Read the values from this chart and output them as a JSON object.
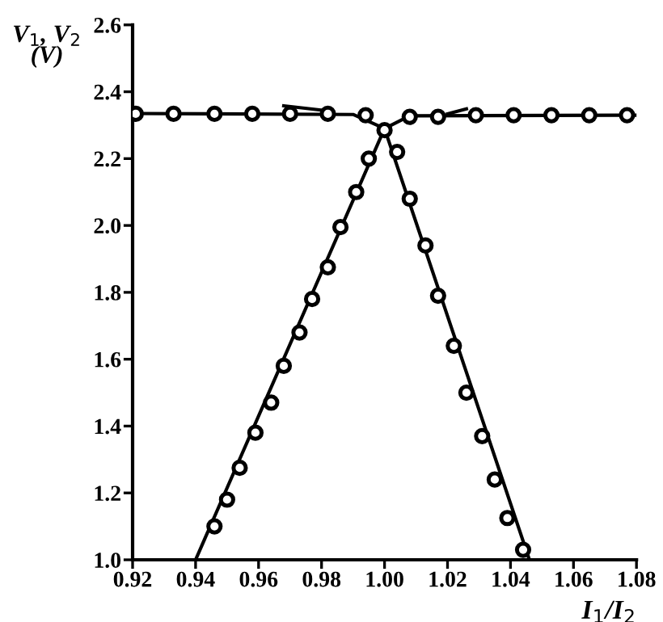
{
  "chart_data": {
    "type": "scatter",
    "xlabel": "I$_{1}$/I$_{2}$",
    "ylabel": "V$_{1}$, V$_{2}$\n(V)",
    "xlim": [
      0.92,
      1.08
    ],
    "xticks": [
      {
        "value": 0.92,
        "label": "0.92"
      },
      {
        "value": 0.94,
        "label": "0.94"
      },
      {
        "value": 0.96,
        "label": "0.96"
      },
      {
        "value": 0.98,
        "label": "0.98"
      },
      {
        "value": 1.0,
        "label": "1.00"
      },
      {
        "value": 1.02,
        "label": "1.02"
      },
      {
        "value": 1.04,
        "label": "1.04"
      },
      {
        "value": 1.06,
        "label": "1.06"
      },
      {
        "value": 1.08,
        "label": "1.08"
      }
    ],
    "ylim": [
      1.0,
      2.6
    ],
    "yticks": [
      {
        "value": 1.0,
        "label": "1.0"
      },
      1.2,
      1.4,
      1.6,
      1.8,
      {
        "value": 2.0,
        "label": "2.0"
      },
      2.2,
      2.4,
      2.6
    ],
    "grid": false,
    "legend": false,
    "marker": "circle",
    "series": [
      {
        "type": "line",
        "marker": "none",
        "color": "#000000",
        "x": [
          0.92,
          0.99,
          1.0,
          1.008,
          1.08
        ],
        "values": [
          2.335,
          2.332,
          2.29,
          2.328,
          2.33
        ]
      },
      {
        "type": "line",
        "marker": "none",
        "color": "#000000",
        "x": [
          0.94,
          1.0,
          1.046
        ],
        "values": [
          1.0,
          2.29,
          1.0
        ]
      },
      {
        "type": "line",
        "marker": "none",
        "color": "#000000",
        "x": [
          0.968,
          0.981
        ],
        "values": [
          2.358,
          2.344
        ]
      },
      {
        "type": "line",
        "marker": "none",
        "color": "#000000",
        "x": [
          1.02,
          1.026
        ],
        "values": [
          2.334,
          2.349
        ]
      },
      {
        "color": "#000000",
        "x": [
          0.921,
          0.933,
          0.946,
          0.958,
          0.97,
          0.982,
          0.994,
          1.008,
          1.017,
          1.029,
          1.041,
          1.053,
          1.065,
          1.077
        ],
        "values": [
          2.334,
          2.334,
          2.334,
          2.334,
          2.334,
          2.334,
          2.33,
          2.325,
          2.325,
          2.33,
          2.33,
          2.33,
          2.33,
          2.33
        ]
      },
      {
        "color": "#000000",
        "x": [
          0.946,
          0.95,
          0.954,
          0.959,
          0.964,
          0.968,
          0.973,
          0.977,
          0.982,
          0.986,
          0.991,
          0.995,
          1.0,
          1.004,
          1.008,
          1.013,
          1.017,
          1.022,
          1.026,
          1.031,
          1.035,
          1.039,
          1.044
        ],
        "values": [
          1.1,
          1.18,
          1.275,
          1.38,
          1.47,
          1.58,
          1.68,
          1.78,
          1.875,
          1.995,
          2.1,
          2.2,
          2.285,
          2.22,
          2.08,
          1.94,
          1.79,
          1.64,
          1.5,
          1.37,
          1.24,
          1.125,
          1.03
        ]
      }
    ]
  }
}
